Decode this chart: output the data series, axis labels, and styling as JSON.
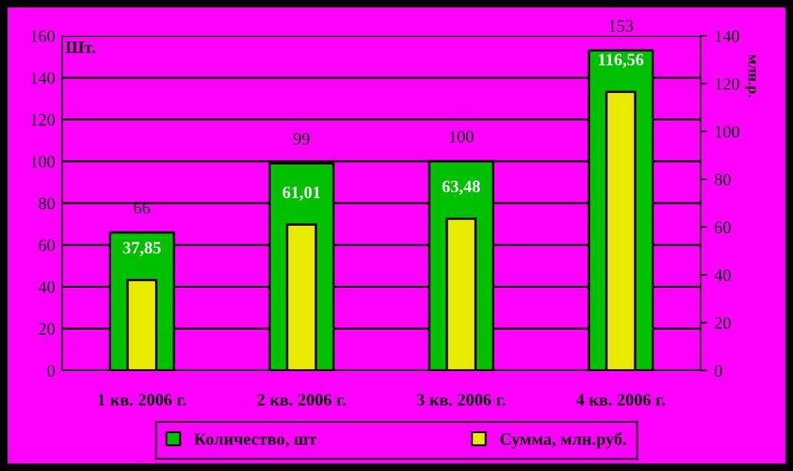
{
  "chart_data": {
    "type": "bar",
    "categories": [
      "1 кв. 2006 г.",
      "2 кв. 2006 г.",
      "3 кв. 2006 г.",
      "4 кв. 2006 г."
    ],
    "ylabel": "Шт.",
    "y2label": "млн.р.",
    "series": [
      {
        "name": "Количество, шт",
        "color": "#00c000",
        "values": [
          66,
          99,
          100,
          153
        ],
        "value_labels": [
          "66",
          "99",
          "100",
          "153"
        ]
      },
      {
        "name": "Сумма, млн.руб.",
        "color": "#e8e800",
        "values": [
          37.85,
          61.01,
          63.48,
          116.56
        ],
        "value_labels": [
          "37,85",
          "61,01",
          "63,48",
          "116,56"
        ],
        "axis": "y2"
      }
    ],
    "ylim": [
      0,
      160
    ],
    "yticks": [
      0,
      20,
      40,
      60,
      80,
      100,
      120,
      140,
      160
    ],
    "y2lim": [
      0,
      140
    ],
    "y2ticks": [
      0,
      20,
      40,
      60,
      80,
      100,
      120,
      140
    ],
    "grid": "y",
    "legend": "bottom"
  }
}
